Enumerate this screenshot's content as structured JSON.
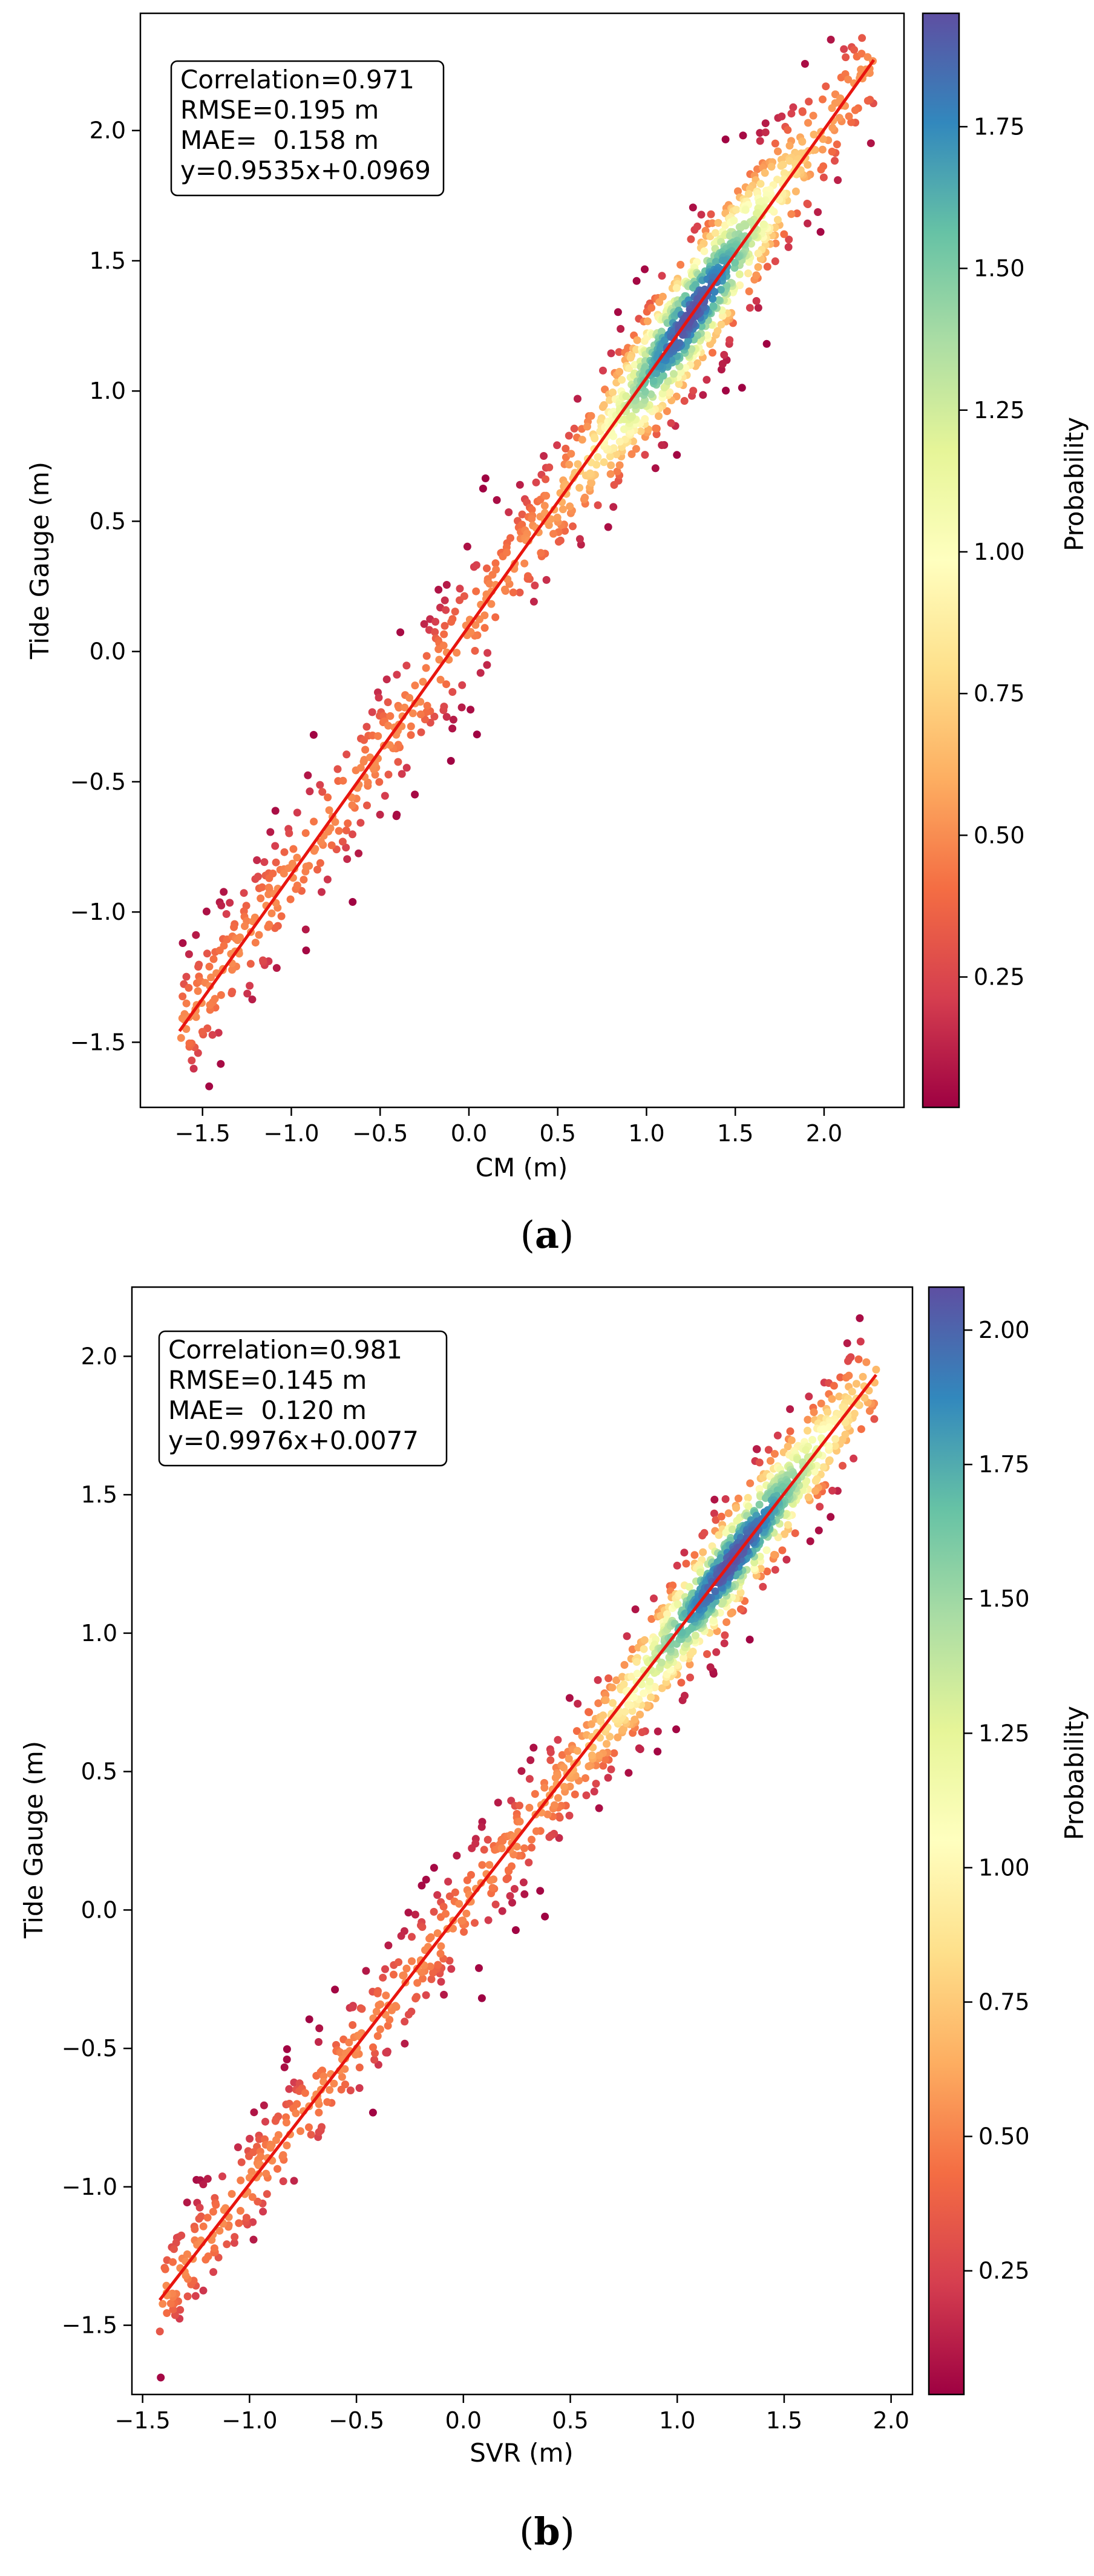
{
  "chart_data": [
    {
      "panel": "a",
      "panel_caption_open": "(",
      "panel_caption_letter": "a",
      "panel_caption_close": ")",
      "type": "scatter",
      "xlabel": "CM (m)",
      "ylabel": "Tide Gauge (m)",
      "xlim": [
        -1.85,
        2.45
      ],
      "ylim": [
        -1.75,
        2.45
      ],
      "xticks": [
        -1.5,
        -1.0,
        -0.5,
        0.0,
        0.5,
        1.0,
        1.5,
        2.0
      ],
      "yticks": [
        -1.5,
        -1.0,
        -0.5,
        0.0,
        0.5,
        1.0,
        1.5,
        2.0
      ],
      "stats": [
        "Correlation=0.971",
        "RMSE=0.195 m",
        "MAE=  0.158 m",
        "y=0.9535x+0.0969"
      ],
      "fit_line": {
        "slope": 0.9535,
        "intercept": 0.0969,
        "x_range": [
          -1.63,
          2.28
        ],
        "color": "#e8150f"
      },
      "colorbar": {
        "label": "Probability",
        "range": [
          0.02,
          1.95
        ],
        "ticks": [
          0.25,
          0.5,
          0.75,
          1.0,
          1.25,
          1.5,
          1.75
        ],
        "cmap": "Spectral"
      },
      "scatter": {
        "n_points": 1400,
        "x_range": [
          -1.63,
          2.28
        ],
        "noise_sd": 0.14,
        "seed": 11
      }
    },
    {
      "panel": "b",
      "panel_caption_open": "(",
      "panel_caption_letter": "b",
      "panel_caption_close": ")",
      "type": "scatter",
      "xlabel": "SVR (m)",
      "ylabel": "Tide Gauge (m)",
      "xlim": [
        -1.55,
        2.1
      ],
      "ylim": [
        -1.75,
        2.25
      ],
      "xticks": [
        -1.5,
        -1.0,
        -0.5,
        0.0,
        0.5,
        1.0,
        1.5,
        2.0
      ],
      "yticks": [
        -1.5,
        -1.0,
        -0.5,
        0.0,
        0.5,
        1.0,
        1.5,
        2.0
      ],
      "stats": [
        "Correlation=0.981",
        "RMSE=0.145 m",
        "MAE=  0.120 m",
        "y=0.9976x+0.0077"
      ],
      "fit_line": {
        "slope": 0.9976,
        "intercept": 0.0077,
        "x_range": [
          -1.42,
          1.93
        ],
        "color": "#e8150f"
      },
      "colorbar": {
        "label": "Probability",
        "range": [
          0.02,
          2.08
        ],
        "ticks": [
          0.25,
          0.5,
          0.75,
          1.0,
          1.25,
          1.5,
          1.75,
          2.0
        ],
        "cmap": "Spectral"
      },
      "scatter": {
        "n_points": 1400,
        "x_range": [
          -1.42,
          1.93
        ],
        "noise_sd": 0.11,
        "seed": 29
      }
    }
  ]
}
